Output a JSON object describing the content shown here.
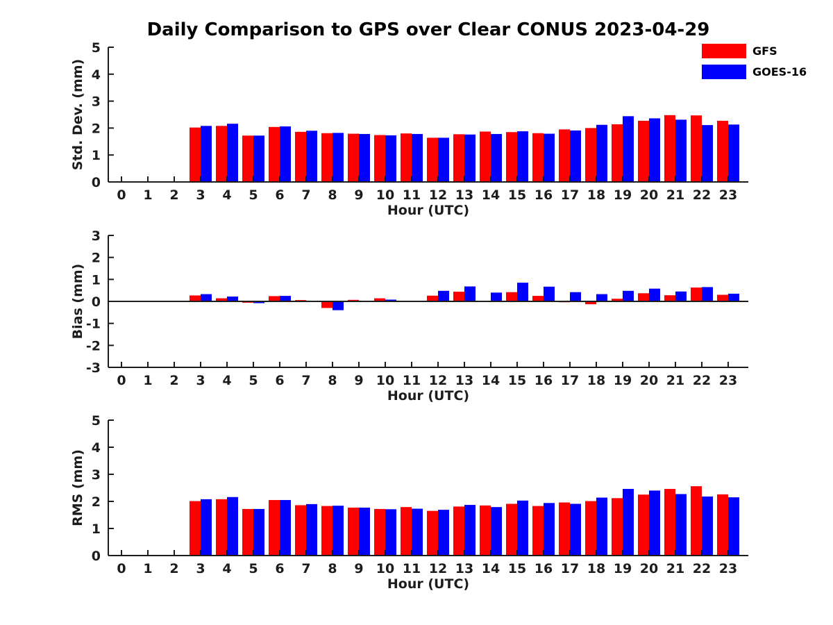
{
  "chart": {
    "title": "Daily Comparison to GPS over Clear CONUS 2023-04-29"
  },
  "legend": {
    "items": [
      {
        "label": "GFS",
        "color": "#ff0000"
      },
      {
        "label": "GOES-16",
        "color": "#0000ff"
      }
    ]
  },
  "chart_data": [
    {
      "type": "bar",
      "name": "std-dev",
      "title": "",
      "xlabel": "Hour (UTC)",
      "ylabel": "Std. Dev. (mm)",
      "ylim": [
        0,
        5
      ],
      "yticks": [
        0,
        1,
        2,
        3,
        4,
        5
      ],
      "grid": false,
      "legend_position": "top-right",
      "categories": [
        "0",
        "1",
        "2",
        "3",
        "4",
        "5",
        "6",
        "7",
        "8",
        "9",
        "10",
        "11",
        "12",
        "13",
        "14",
        "15",
        "16",
        "17",
        "18",
        "19",
        "20",
        "21",
        "22",
        "23"
      ],
      "series": [
        {
          "name": "GFS",
          "color": "#ff0000",
          "values": [
            null,
            null,
            null,
            2.02,
            2.08,
            1.72,
            2.04,
            1.86,
            1.81,
            1.79,
            1.74,
            1.8,
            1.64,
            1.77,
            1.87,
            1.85,
            1.81,
            1.95,
            2.0,
            2.14,
            2.27,
            2.48,
            2.47,
            2.27
          ]
        },
        {
          "name": "GOES-16",
          "color": "#0000ff",
          "values": [
            null,
            null,
            null,
            2.08,
            2.16,
            1.72,
            2.06,
            1.9,
            1.82,
            1.78,
            1.73,
            1.78,
            1.64,
            1.76,
            1.78,
            1.88,
            1.79,
            1.91,
            2.12,
            2.44,
            2.36,
            2.31,
            2.11,
            2.13
          ]
        }
      ]
    },
    {
      "type": "bar",
      "name": "bias",
      "title": "",
      "xlabel": "Hour (UTC)",
      "ylabel": "Bias (mm)",
      "ylim": [
        -3,
        3
      ],
      "yticks": [
        -3,
        -2,
        -1,
        0,
        1,
        2,
        3
      ],
      "grid": false,
      "zero_line": true,
      "categories": [
        "0",
        "1",
        "2",
        "3",
        "4",
        "5",
        "6",
        "7",
        "8",
        "9",
        "10",
        "11",
        "12",
        "13",
        "14",
        "15",
        "16",
        "17",
        "18",
        "19",
        "20",
        "21",
        "22",
        "23"
      ],
      "series": [
        {
          "name": "GFS",
          "color": "#ff0000",
          "values": [
            null,
            null,
            null,
            0.27,
            0.14,
            -0.06,
            0.24,
            0.06,
            -0.3,
            0.07,
            0.14,
            -0.02,
            0.26,
            0.44,
            0.03,
            0.42,
            0.25,
            -0.04,
            -0.13,
            0.12,
            0.37,
            0.28,
            0.63,
            0.3
          ]
        },
        {
          "name": "GOES-16",
          "color": "#0000ff",
          "values": [
            null,
            null,
            null,
            0.33,
            0.22,
            -0.08,
            0.25,
            0.01,
            -0.4,
            0.02,
            0.08,
            0.03,
            0.48,
            0.68,
            0.4,
            0.85,
            0.67,
            0.42,
            0.33,
            0.48,
            0.58,
            0.45,
            0.65,
            0.35
          ]
        }
      ]
    },
    {
      "type": "bar",
      "name": "rms",
      "title": "",
      "xlabel": "Hour (UTC)",
      "ylabel": "RMS (mm)",
      "ylim": [
        0,
        5
      ],
      "yticks": [
        0,
        1,
        2,
        3,
        4,
        5
      ],
      "grid": false,
      "categories": [
        "0",
        "1",
        "2",
        "3",
        "4",
        "5",
        "6",
        "7",
        "8",
        "9",
        "10",
        "11",
        "12",
        "13",
        "14",
        "15",
        "16",
        "17",
        "18",
        "19",
        "20",
        "21",
        "22",
        "23"
      ],
      "series": [
        {
          "name": "GFS",
          "color": "#ff0000",
          "values": [
            null,
            null,
            null,
            2.01,
            2.08,
            1.72,
            2.05,
            1.86,
            1.83,
            1.77,
            1.72,
            1.79,
            1.65,
            1.81,
            1.85,
            1.91,
            1.83,
            1.96,
            2.01,
            2.12,
            2.25,
            2.46,
            2.56,
            2.26
          ]
        },
        {
          "name": "GOES-16",
          "color": "#0000ff",
          "values": [
            null,
            null,
            null,
            2.08,
            2.16,
            1.72,
            2.05,
            1.9,
            1.84,
            1.77,
            1.71,
            1.73,
            1.69,
            1.87,
            1.79,
            2.03,
            1.94,
            1.91,
            2.14,
            2.46,
            2.4,
            2.27,
            2.18,
            2.15
          ]
        }
      ]
    }
  ]
}
